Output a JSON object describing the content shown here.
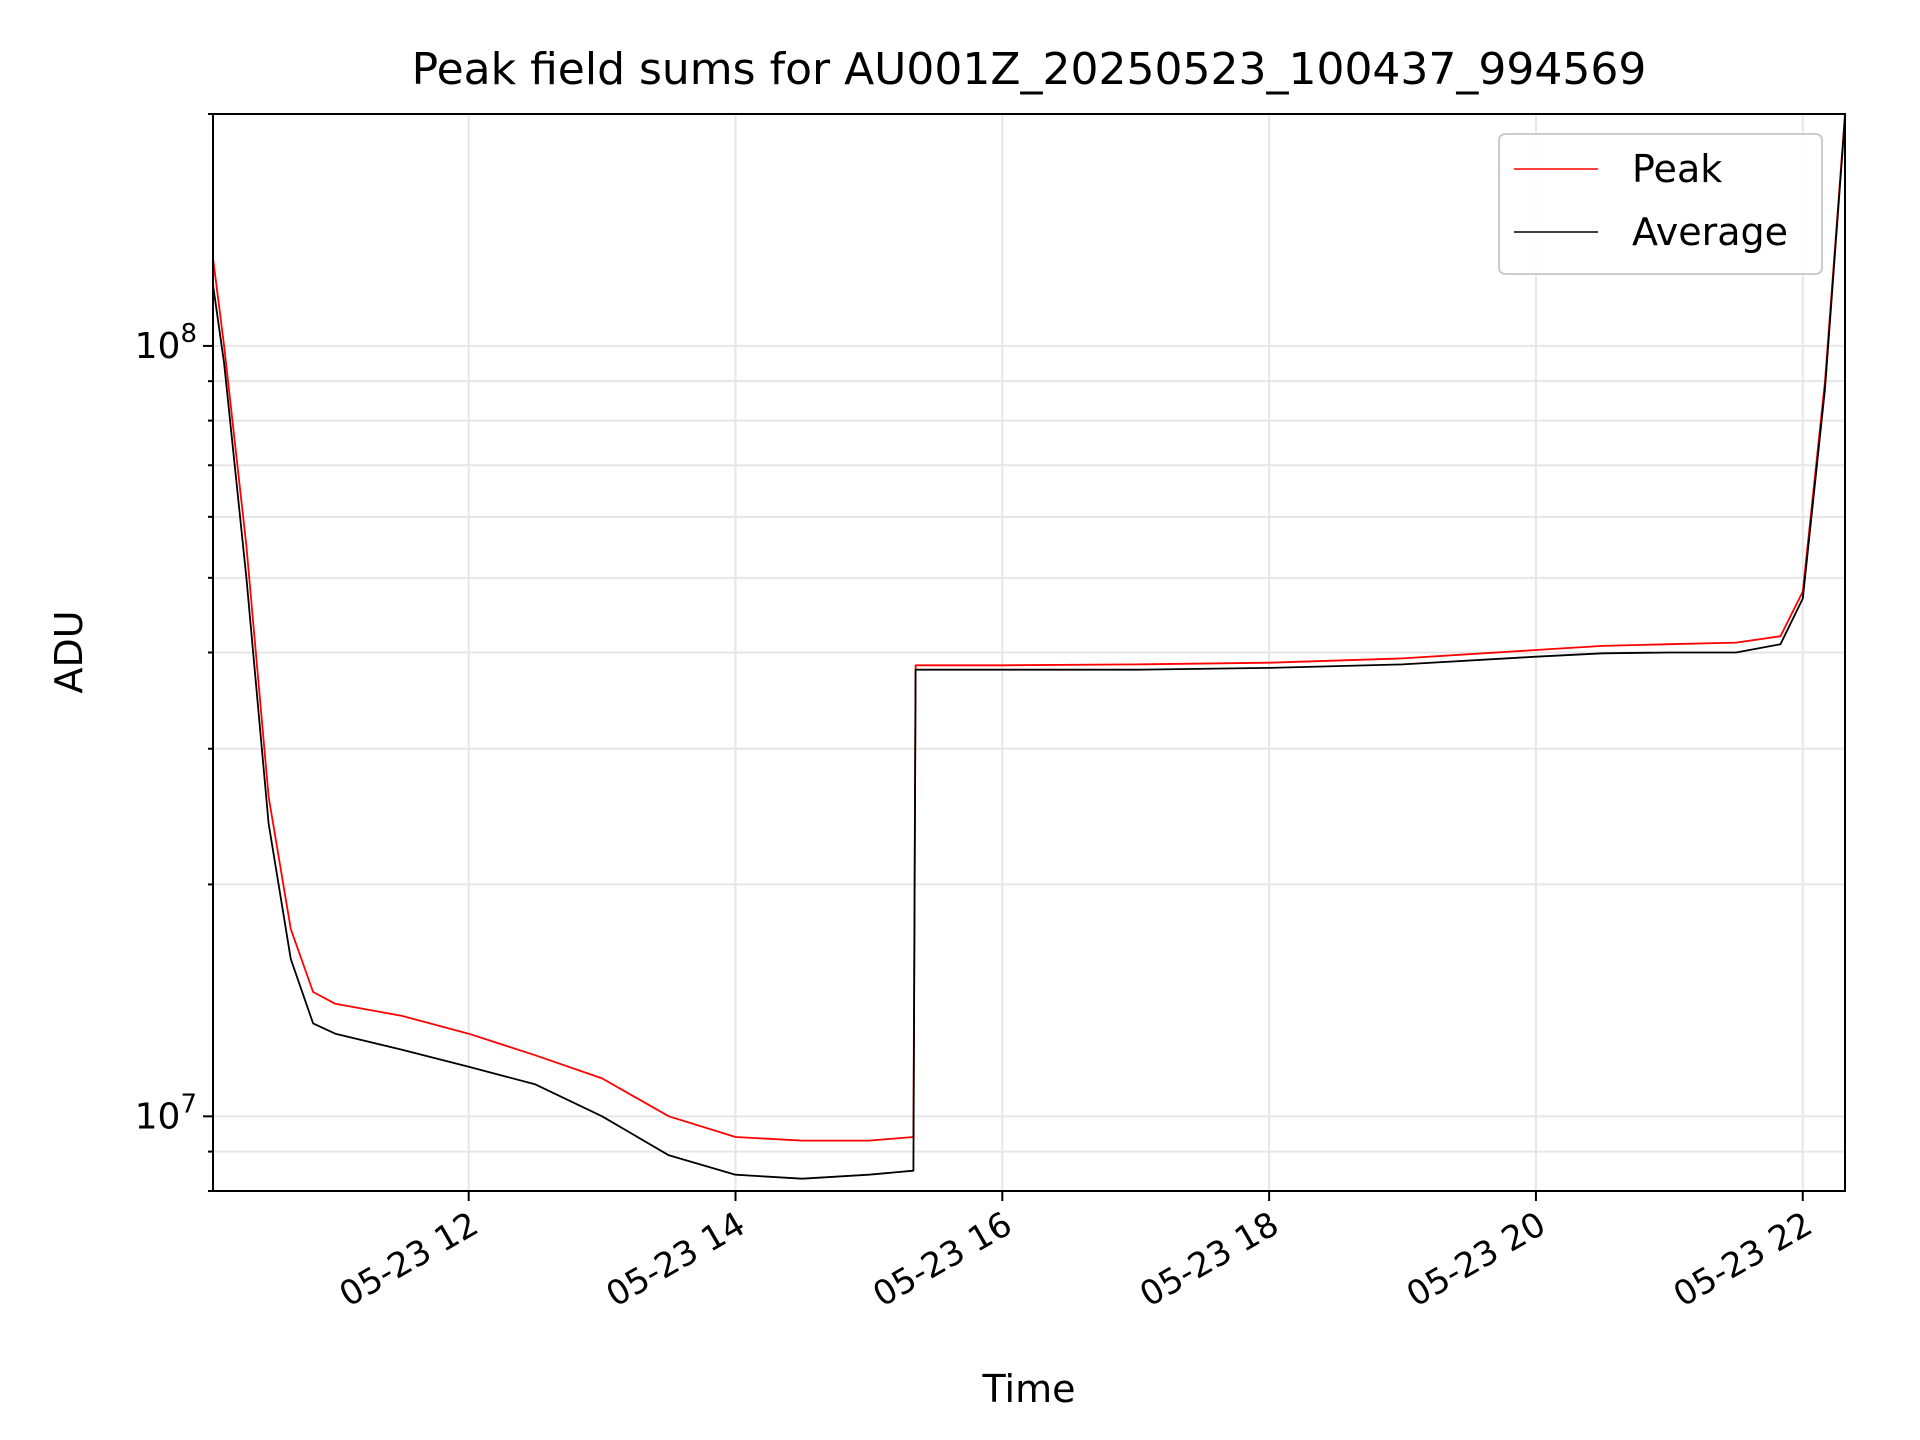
{
  "chart_data": {
    "type": "line",
    "title": "Peak field sums for AU001Z_20250523_100437_994569",
    "xlabel": "Time",
    "ylabel": "ADU",
    "yscale": "log",
    "xlim": [
      "2025-05-23 10:05",
      "2025-05-23 22:19"
    ],
    "ylim": [
      8000000,
      200000000
    ],
    "grid": true,
    "legend": "top-right",
    "x_ticks": [
      {
        "value": "2025-05-23 12:00",
        "label": "05-23 12"
      },
      {
        "value": "2025-05-23 14:00",
        "label": "05-23 14"
      },
      {
        "value": "2025-05-23 16:00",
        "label": "05-23 16"
      },
      {
        "value": "2025-05-23 18:00",
        "label": "05-23 18"
      },
      {
        "value": "2025-05-23 20:00",
        "label": "05-23 20"
      },
      {
        "value": "2025-05-23 22:00",
        "label": "05-23 22"
      }
    ],
    "y_ticks": [
      {
        "value": 10000000,
        "base": "10",
        "exp": "7"
      },
      {
        "value": 100000000,
        "base": "10",
        "exp": "8"
      }
    ],
    "series": [
      {
        "name": "Peak",
        "color": "#ff0000",
        "x": [
          "2025-05-23 10:05",
          "2025-05-23 10:10",
          "2025-05-23 10:20",
          "2025-05-23 10:30",
          "2025-05-23 10:40",
          "2025-05-23 10:50",
          "2025-05-23 11:00",
          "2025-05-23 11:30",
          "2025-05-23 12:00",
          "2025-05-23 12:30",
          "2025-05-23 13:00",
          "2025-05-23 13:30",
          "2025-05-23 14:00",
          "2025-05-23 14:30",
          "2025-05-23 15:00",
          "2025-05-23 15:20",
          "2025-05-23 15:21",
          "2025-05-23 16:00",
          "2025-05-23 17:00",
          "2025-05-23 18:00",
          "2025-05-23 19:00",
          "2025-05-23 20:00",
          "2025-05-23 20:30",
          "2025-05-23 21:00",
          "2025-05-23 21:30",
          "2025-05-23 21:50",
          "2025-05-23 22:00",
          "2025-05-23 22:10",
          "2025-05-23 22:19"
        ],
        "y": [
          130000000,
          100000000,
          55000000,
          26000000,
          17500000,
          14500000,
          14000000,
          13500000,
          12800000,
          12000000,
          11200000,
          10000000,
          9400000,
          9300000,
          9300000,
          9400000,
          38500000,
          38500000,
          38600000,
          38800000,
          39300000,
          40300000,
          40800000,
          41000000,
          41200000,
          42000000,
          48000000,
          90000000,
          200000000
        ]
      },
      {
        "name": "Average",
        "color": "#000000",
        "x": [
          "2025-05-23 10:05",
          "2025-05-23 10:10",
          "2025-05-23 10:20",
          "2025-05-23 10:30",
          "2025-05-23 10:40",
          "2025-05-23 10:50",
          "2025-05-23 11:00",
          "2025-05-23 11:30",
          "2025-05-23 12:00",
          "2025-05-23 12:30",
          "2025-05-23 13:00",
          "2025-05-23 13:30",
          "2025-05-23 14:00",
          "2025-05-23 14:30",
          "2025-05-23 15:00",
          "2025-05-23 15:20",
          "2025-05-23 15:21",
          "2025-05-23 16:00",
          "2025-05-23 17:00",
          "2025-05-23 18:00",
          "2025-05-23 19:00",
          "2025-05-23 20:00",
          "2025-05-23 20:30",
          "2025-05-23 21:00",
          "2025-05-23 21:30",
          "2025-05-23 21:50",
          "2025-05-23 22:00",
          "2025-05-23 22:10",
          "2025-05-23 22:19"
        ],
        "y": [
          120000000,
          95000000,
          50000000,
          24000000,
          16000000,
          13200000,
          12800000,
          12200000,
          11600000,
          11000000,
          10000000,
          8900000,
          8400000,
          8300000,
          8400000,
          8500000,
          38000000,
          38000000,
          38000000,
          38200000,
          38600000,
          39500000,
          39900000,
          40000000,
          40000000,
          41000000,
          47000000,
          88000000,
          198000000
        ]
      }
    ]
  }
}
